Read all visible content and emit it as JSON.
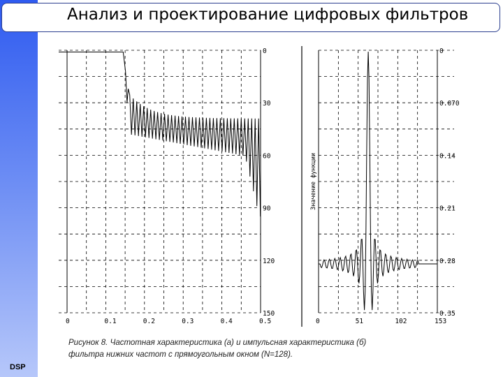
{
  "slide": {
    "title": "Анализ и проектирование цифровых фильтров",
    "footer_label": "DSP",
    "caption_line1": "Рисунок 8. Частотная характеристика (а) и импульсная характеристика (б)",
    "caption_line2": "фильтра нижних частот с прямоугольным окном (N=128)."
  },
  "chart_data": [
    {
      "type": "line",
      "title": "",
      "xlabel": "",
      "x_ticks": [
        "0",
        "0.1",
        "0.2",
        "0.3",
        "0.4",
        "0.5"
      ],
      "y_ticks": [
        "0",
        "30",
        "60",
        "90",
        "120",
        "150"
      ],
      "xlim": [
        0,
        0.5
      ],
      "ylim": [
        0,
        150
      ],
      "y_inverted": true,
      "grid": true,
      "grid_style": "dashed",
      "passband": {
        "x": [
          0,
          0.145
        ],
        "y": 1
      },
      "stopband_description": "oscillating side lobes between ~30 and ~63 dB, deepening toward 0.5"
    },
    {
      "type": "line",
      "ylabel": "Значение функции",
      "x_ticks": [
        "0",
        "51",
        "102",
        "153"
      ],
      "y_ticks": [
        "0",
        "0.070",
        "0.14",
        "0.21",
        "0.28",
        "0.35"
      ],
      "xlim": [
        0,
        153
      ],
      "grid": true,
      "grid_style": "dashed",
      "peak_x": 64
    }
  ]
}
